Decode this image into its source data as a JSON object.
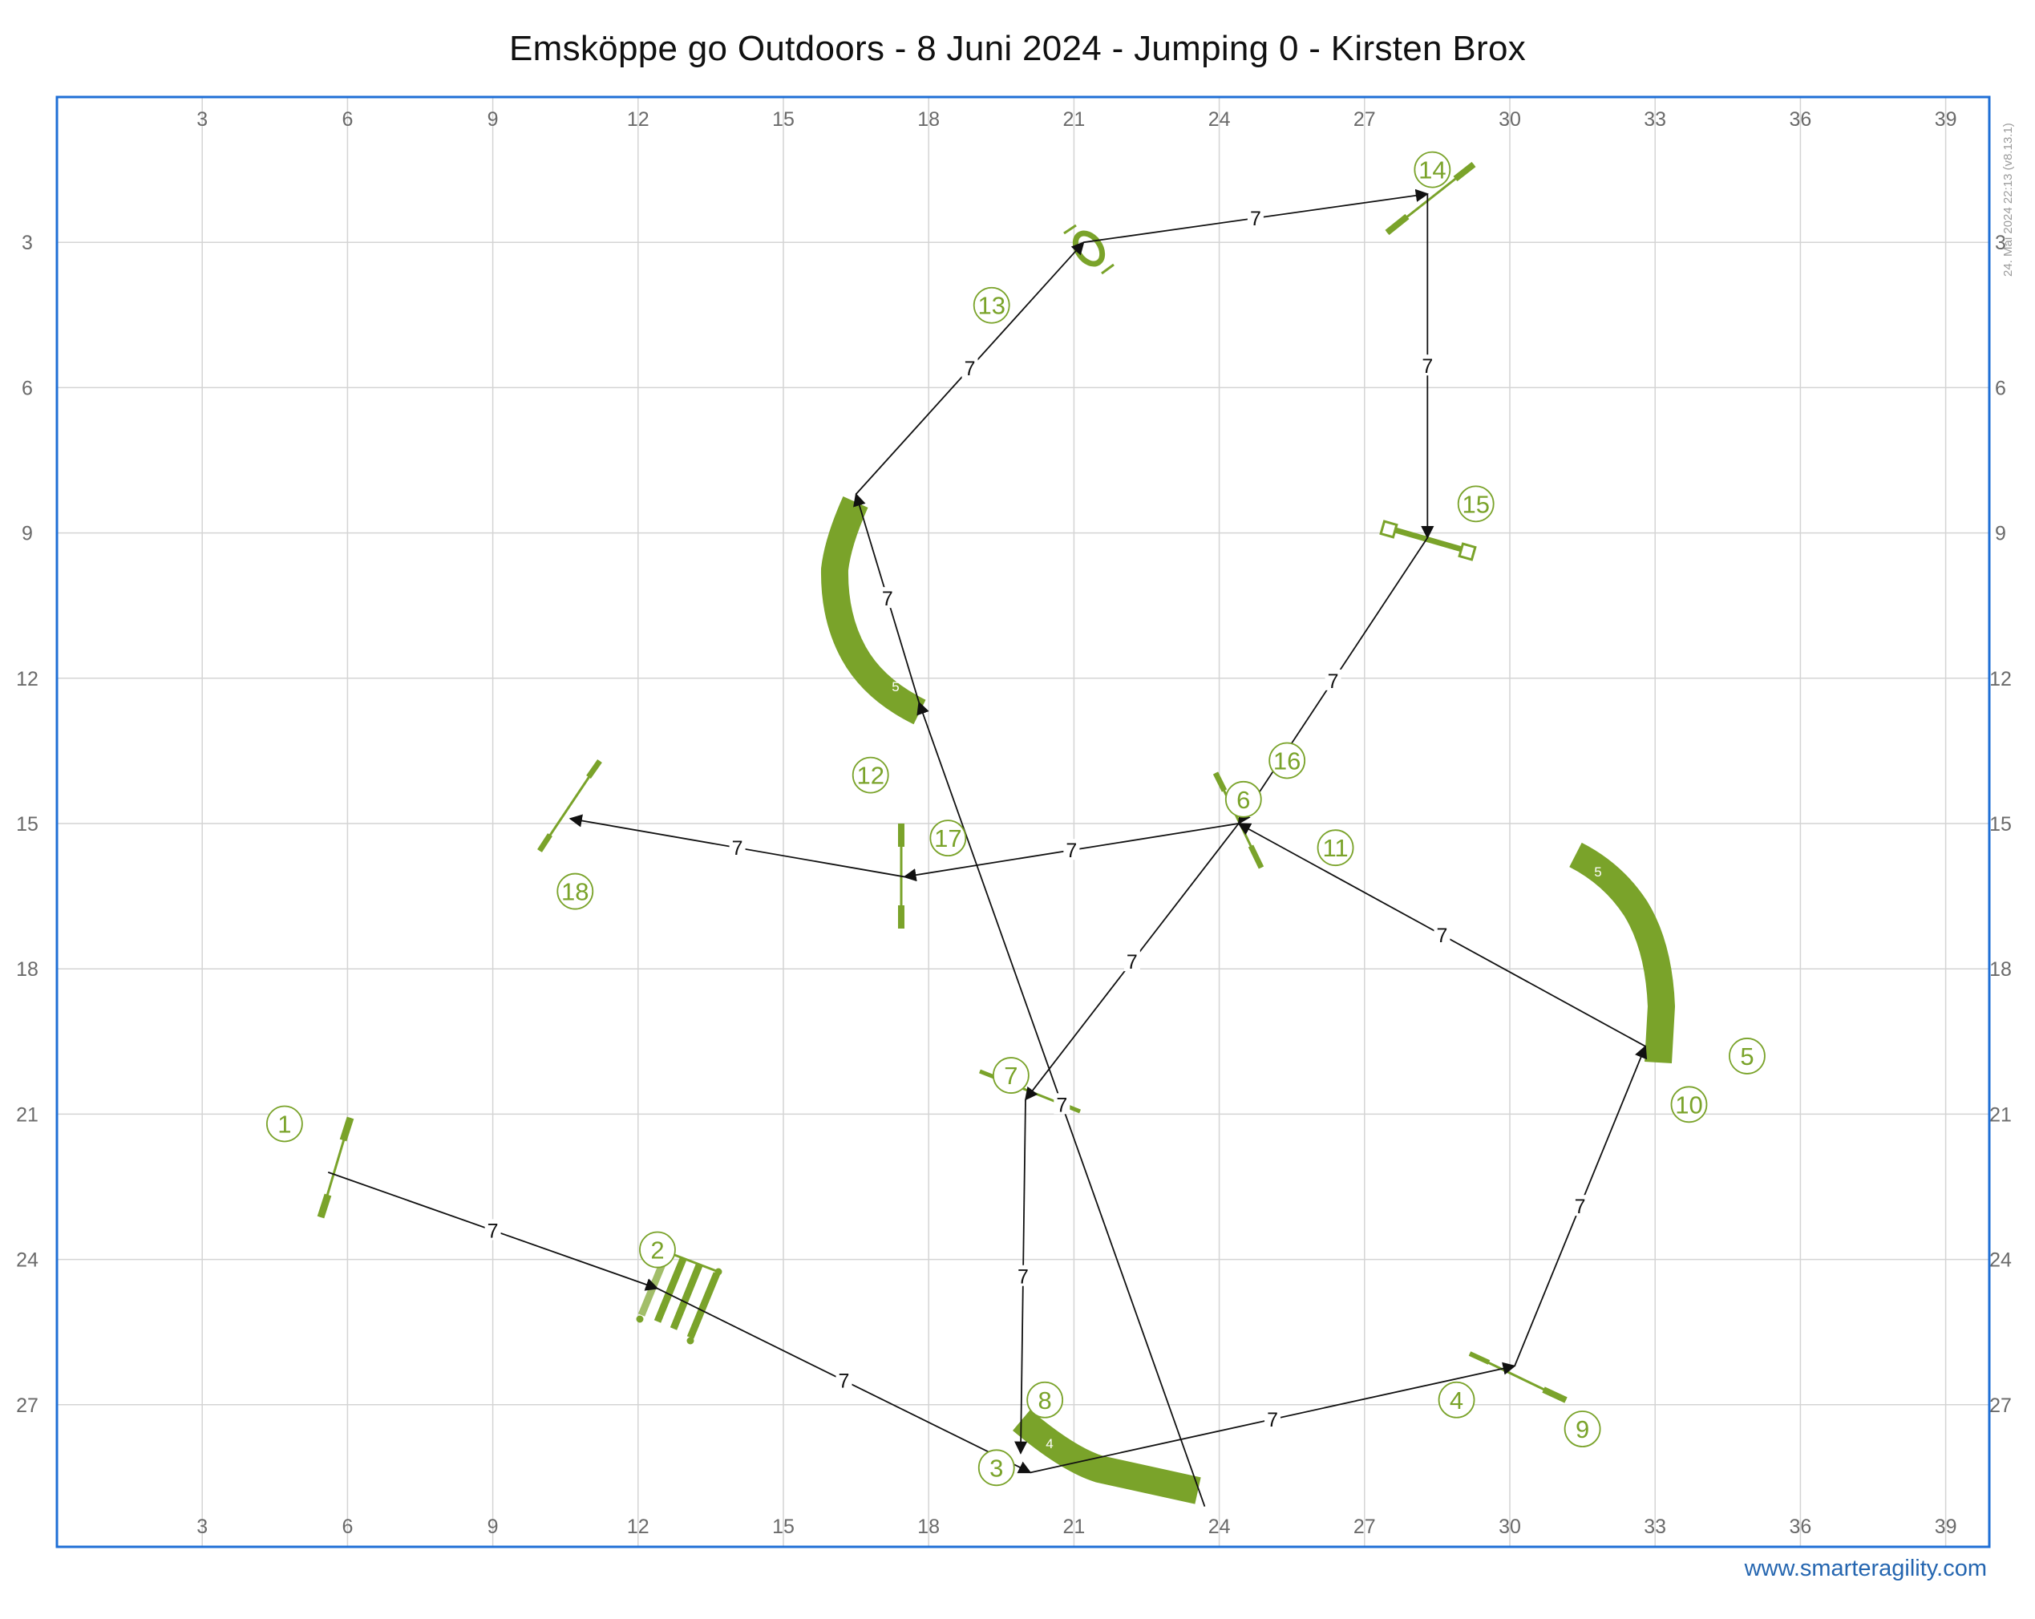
{
  "title": "Emsköppe go Outdoors - 8 Juni 2024 - Jumping 0 - Kirsten Brox",
  "footer": "www.smarteragility.com",
  "version": "24. Mai 2024 22:13 (v8.13.1)",
  "colors": {
    "equipment": "#7aa32a",
    "frame": "#1f6fd6",
    "grid": "#d4d4d4",
    "path": "#111111",
    "axis_label": "#6a6a6a"
  },
  "grid": {
    "x_labels": [
      "3",
      "6",
      "9",
      "12",
      "15",
      "18",
      "21",
      "24",
      "27",
      "30",
      "33",
      "36",
      "39"
    ],
    "y_labels": [
      "3",
      "6",
      "9",
      "12",
      "15",
      "18",
      "21",
      "24",
      "27"
    ]
  },
  "path_distance_label": "7",
  "numbers": [
    {
      "n": "1",
      "x": 4.7,
      "y": 21.2
    },
    {
      "n": "2",
      "x": 12.4,
      "y": 23.8
    },
    {
      "n": "3",
      "x": 19.4,
      "y": 28.3
    },
    {
      "n": "4",
      "x": 28.9,
      "y": 26.9
    },
    {
      "n": "5",
      "x": 34.9,
      "y": 19.8
    },
    {
      "n": "6",
      "x": 24.5,
      "y": 14.5
    },
    {
      "n": "7",
      "x": 19.7,
      "y": 20.2
    },
    {
      "n": "8",
      "x": 20.4,
      "y": 26.9
    },
    {
      "n": "9",
      "x": 31.5,
      "y": 27.5
    },
    {
      "n": "10",
      "x": 33.7,
      "y": 20.8
    },
    {
      "n": "11",
      "x": 26.4,
      "y": 15.5
    },
    {
      "n": "12",
      "x": 16.8,
      "y": 14.0
    },
    {
      "n": "13",
      "x": 19.3,
      "y": 4.3
    },
    {
      "n": "14",
      "x": 28.4,
      "y": 1.5
    },
    {
      "n": "15",
      "x": 29.3,
      "y": 8.4
    },
    {
      "n": "16",
      "x": 25.4,
      "y": 13.7
    },
    {
      "n": "17",
      "x": 18.4,
      "y": 15.3
    },
    {
      "n": "18",
      "x": 10.7,
      "y": 16.4
    }
  ],
  "path": [
    [
      5.6,
      22.2
    ],
    [
      12.4,
      24.6
    ],
    [
      20.1,
      28.4
    ],
    [
      30.1,
      26.2
    ],
    [
      32.8,
      19.6
    ],
    [
      24.4,
      15.0
    ],
    [
      20.0,
      20.7
    ],
    [
      19.9,
      28.0
    ],
    [
      23.7,
      29.1
    ],
    [
      17.8,
      12.5
    ],
    [
      16.5,
      8.2
    ],
    [
      21.2,
      3.0
    ],
    [
      28.3,
      2.0
    ],
    [
      28.3,
      9.1
    ],
    [
      24.4,
      15.0
    ],
    [
      17.5,
      16.1
    ],
    [
      10.6,
      14.9
    ]
  ],
  "tunnel_labels": [
    "4",
    "5",
    "5"
  ]
}
